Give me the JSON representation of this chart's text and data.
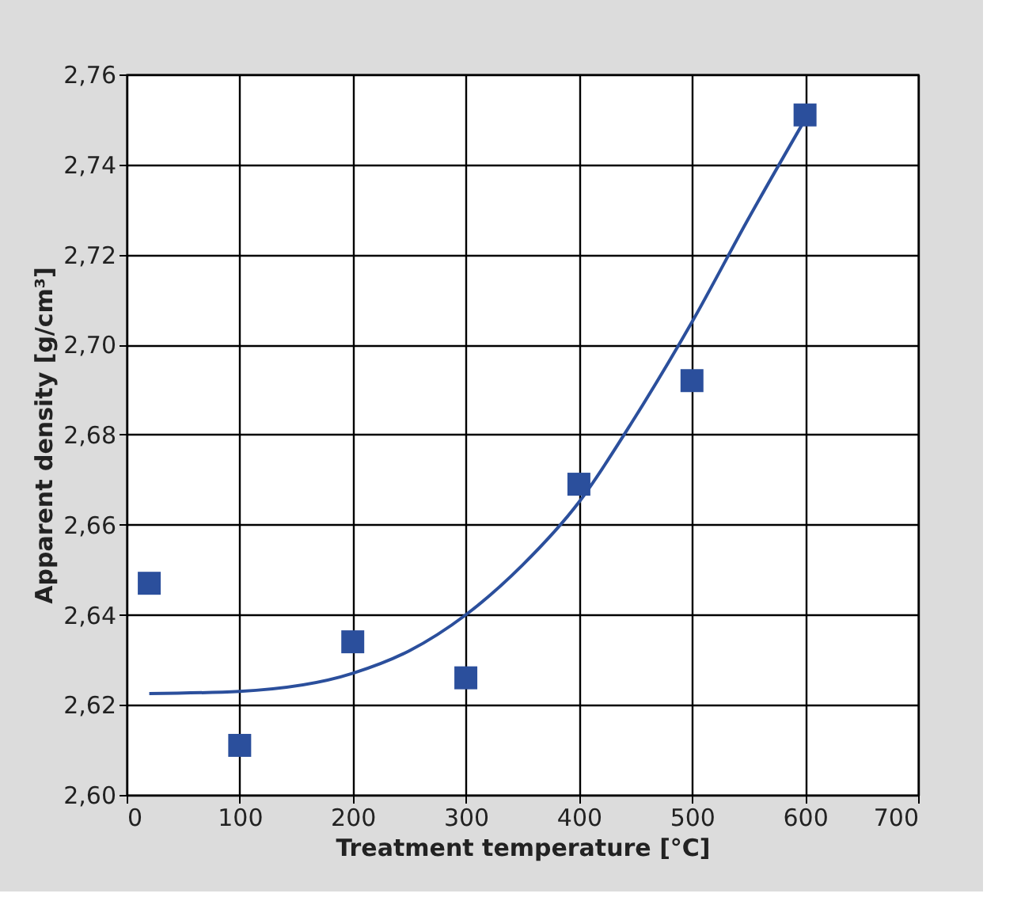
{
  "chart_data": {
    "type": "scatter",
    "xlabel": "Treatment temperature [°C]",
    "ylabel": "Apparent density [g/cm³]",
    "xlim": [
      0,
      700
    ],
    "xticks": [
      0,
      100,
      200,
      300,
      400,
      500,
      600,
      700
    ],
    "ylim": [
      2.6,
      2.76
    ],
    "yticks": [
      {
        "value": 2.6,
        "label": "2,60"
      },
      {
        "value": 2.62,
        "label": "2,62"
      },
      {
        "value": 2.64,
        "label": "2,64"
      },
      {
        "value": 2.66,
        "label": "2,66"
      },
      {
        "value": 2.68,
        "label": "2,68"
      },
      {
        "value": 2.7,
        "label": "2,70"
      },
      {
        "value": 2.72,
        "label": "2,72"
      },
      {
        "value": 2.74,
        "label": "2,74"
      },
      {
        "value": 2.76,
        "label": "2,76"
      }
    ],
    "grid": true,
    "series": [
      {
        "marker": "square",
        "color": "#2b4f9c",
        "x": [
          20,
          100,
          200,
          300,
          400,
          500,
          600
        ],
        "values": [
          2.647,
          2.611,
          2.634,
          2.626,
          2.669,
          2.692,
          2.751
        ]
      },
      {
        "type": "line",
        "marker": "none",
        "line_style": "solid",
        "color": "#2b4f9c",
        "x": [
          20,
          100,
          200,
          250,
          300,
          350,
          400,
          450,
          500,
          550,
          600
        ],
        "values": [
          2.6225,
          2.623,
          2.627,
          2.632,
          2.64,
          2.651,
          2.665,
          2.684,
          2.705,
          2.728,
          2.75
        ]
      }
    ]
  }
}
